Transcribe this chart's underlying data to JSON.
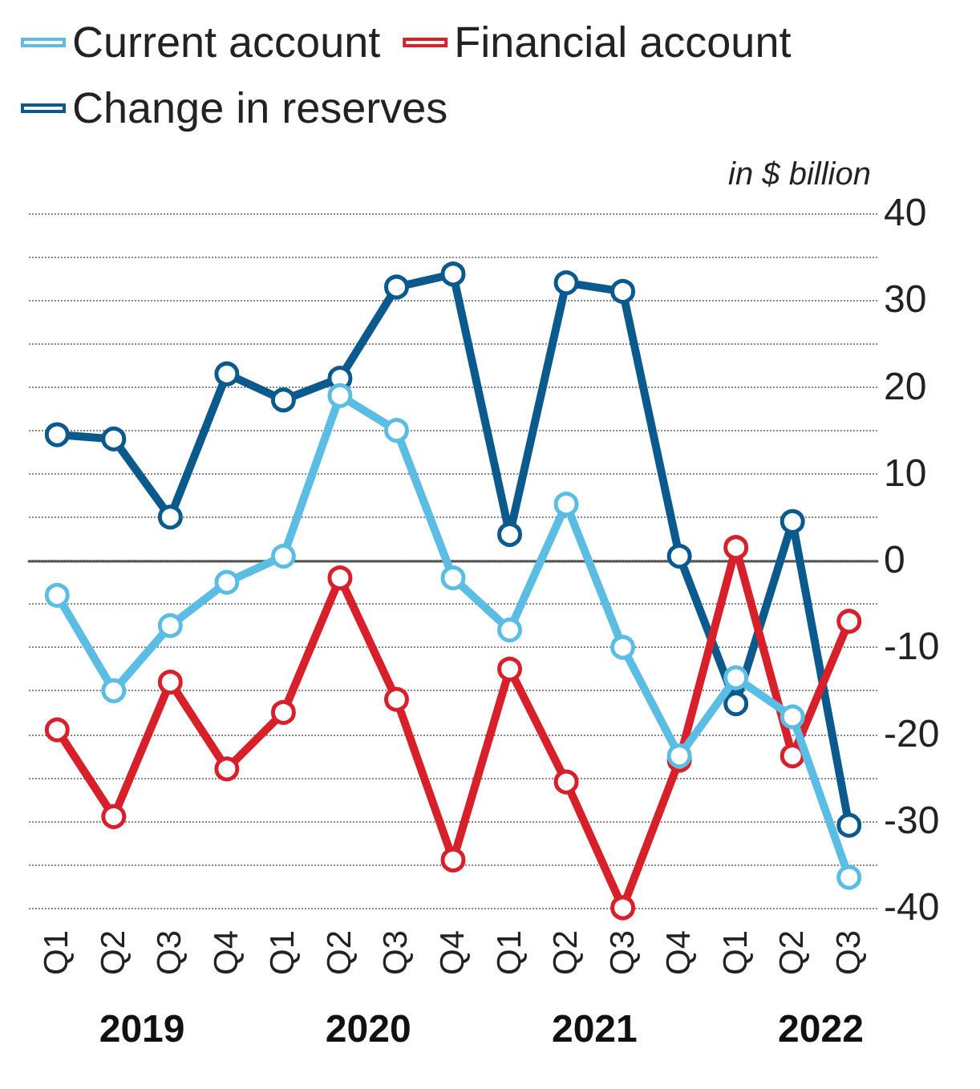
{
  "chart_data": {
    "type": "line",
    "ylabel": "in $ billion",
    "categories": [
      "Q1",
      "Q2",
      "Q3",
      "Q4",
      "Q1",
      "Q2",
      "Q3",
      "Q4",
      "Q1",
      "Q2",
      "Q3",
      "Q4",
      "Q1",
      "Q2",
      "Q3"
    ],
    "series": [
      {
        "name": "Current account",
        "color": "#5bbde4",
        "values": [
          -4,
          -15,
          -7.5,
          -2.5,
          0.5,
          19,
          15,
          -2,
          -8,
          6.5,
          -10,
          -22.5,
          -13.5,
          -18,
          -36.5
        ]
      },
      {
        "name": "Financial account",
        "color": "#d7202a",
        "values": [
          -19.5,
          -29.5,
          -14,
          -24,
          -17.5,
          -2,
          -16,
          -34.5,
          -12.5,
          -25.5,
          -40,
          -23,
          1.5,
          -22.5,
          -7
        ]
      },
      {
        "name": "Change in reserves",
        "color": "#0a5a8e",
        "values": [
          14.5,
          14,
          5,
          21.5,
          18.5,
          21,
          31.5,
          33,
          3,
          32,
          31,
          0.5,
          -16.5,
          4.5,
          -30.5
        ]
      }
    ],
    "ylim": [
      -40,
      40
    ],
    "yticks": [
      -40,
      -30,
      -20,
      -10,
      0,
      10,
      20,
      30,
      40
    ],
    "grid": "y",
    "legend": "top left",
    "marker": "circle",
    "line_style": "solid",
    "annotations": [
      "2019",
      "2020",
      "2021",
      "2022"
    ]
  }
}
